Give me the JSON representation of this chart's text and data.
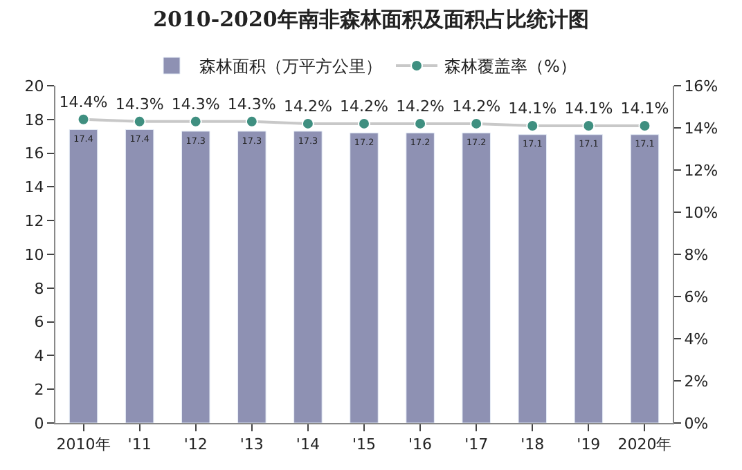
{
  "chart_data": {
    "type": "bar",
    "title": "2010-2020年南非森林面积及面积占比统计图",
    "categories": [
      "2010年",
      "'11",
      "'12",
      "'13",
      "'14",
      "'15",
      "'16",
      "'17",
      "'18",
      "'19",
      "2020年"
    ],
    "series": [
      {
        "name": "森林面积（万平方公里）",
        "color": "#8e91b3",
        "values": [
          17.4,
          17.4,
          17.3,
          17.3,
          17.3,
          17.2,
          17.2,
          17.2,
          17.1,
          17.1,
          17.1
        ],
        "value_labels": [
          "17.4",
          "17.4",
          "17.3",
          "17.3",
          "17.3",
          "17.2",
          "17.2",
          "17.2",
          "17.1",
          "17.1",
          "17.1"
        ]
      },
      {
        "name": "森林覆盖率（%）",
        "type": "line",
        "axis": "y2",
        "color": "#3f8f80",
        "marker": "circle",
        "values": [
          14.4,
          14.3,
          14.3,
          14.3,
          14.2,
          14.2,
          14.2,
          14.2,
          14.1,
          14.1,
          14.1
        ],
        "value_labels": [
          "14.4%",
          "14.3%",
          "14.3%",
          "14.3%",
          "14.2%",
          "14.2%",
          "14.2%",
          "14.2%",
          "14.1%",
          "14.1%",
          "14.1%"
        ]
      }
    ],
    "ylim": [
      0,
      20
    ],
    "yticks": [
      0,
      2,
      4,
      6,
      8,
      10,
      12,
      14,
      16,
      18,
      20
    ],
    "y2lim": [
      0,
      16
    ],
    "y2ticks": [
      {
        "value": 0,
        "label": "0%"
      },
      {
        "value": 2,
        "label": "2%"
      },
      {
        "value": 4,
        "label": "4%"
      },
      {
        "value": 6,
        "label": "6%"
      },
      {
        "value": 8,
        "label": "8%"
      },
      {
        "value": 10,
        "label": "10%"
      },
      {
        "value": 12,
        "label": "12%"
      },
      {
        "value": 14,
        "label": "14%"
      },
      {
        "value": 16,
        "label": "16%"
      }
    ],
    "legend": "top"
  }
}
